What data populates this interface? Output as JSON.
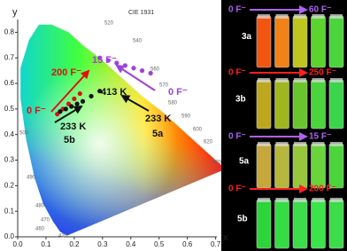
{
  "chart_data": {
    "type": "scatter",
    "title": "CIE 1931",
    "xlabel": "x",
    "ylabel": "y",
    "xlim": [
      0,
      0.72
    ],
    "ylim": [
      0,
      0.85
    ],
    "xticks": [
      {
        "value": 0,
        "label": "0.0"
      },
      {
        "value": 0.1,
        "label": "0.1"
      },
      {
        "value": 0.2,
        "label": "0.2"
      },
      {
        "value": 0.3,
        "label": "0.3"
      },
      {
        "value": 0.4,
        "label": "0.4"
      },
      {
        "value": 0.5,
        "label": "0.5"
      },
      {
        "value": 0.6,
        "label": "0.6"
      },
      {
        "value": 0.7,
        "label": "0.7"
      }
    ],
    "yticks": [
      {
        "value": 0,
        "label": "0.0"
      },
      {
        "value": 0.1,
        "label": "0.1"
      },
      {
        "value": 0.2,
        "label": "0.2"
      },
      {
        "value": 0.3,
        "label": "0.3"
      },
      {
        "value": 0.4,
        "label": "0.4"
      },
      {
        "value": 0.5,
        "label": "0.5"
      },
      {
        "value": 0.6,
        "label": "0.6"
      },
      {
        "value": 0.7,
        "label": "0.7"
      },
      {
        "value": 0.8,
        "label": "0.8"
      }
    ],
    "wavelengths": [
      "420",
      "460",
      "470",
      "480",
      "490",
      "500",
      "520",
      "540",
      "560",
      "570",
      "580",
      "590",
      "600",
      "620",
      "680"
    ],
    "series": [
      {
        "color": "#e01010",
        "x": [
          0.14,
          0.16,
          0.18,
          0.2,
          0.22
        ],
        "y": [
          0.48,
          0.5,
          0.52,
          0.54,
          0.56
        ]
      },
      {
        "color": "#111111",
        "x": [
          0.15,
          0.17,
          0.19,
          0.21,
          0.23,
          0.26,
          0.29
        ],
        "y": [
          0.49,
          0.5,
          0.51,
          0.52,
          0.53,
          0.55,
          0.57
        ]
      },
      {
        "color": "#a040e0",
        "x": [
          0.29,
          0.32,
          0.35,
          0.38,
          0.41,
          0.44,
          0.47
        ],
        "y": [
          0.7,
          0.69,
          0.68,
          0.67,
          0.66,
          0.65,
          0.64
        ]
      }
    ],
    "annotations": [
      "0 F⁻",
      "200 F⁻",
      "15 F⁻",
      "0 F⁻",
      "413 K",
      "233 K",
      "5b",
      "233 K",
      "5a"
    ]
  },
  "panels": [
    {
      "label": "3a",
      "start": "0 F⁻",
      "end": "60 F⁻",
      "arrow_color": "#b060f0",
      "vial_colors": [
        "#ff5a10",
        "#ff8a1a",
        "#c8d020",
        "#60e030",
        "#50e040"
      ]
    },
    {
      "label": "3b",
      "start": "0 F⁻",
      "end": "250 F⁻",
      "arrow_color": "#ff2020",
      "vial_colors": [
        "#c8b020",
        "#a8c020",
        "#70d030",
        "#50e040",
        "#40e050"
      ]
    },
    {
      "label": "5a",
      "start": "0 F⁻",
      "end": "15 F⁻",
      "arrow_color": "#b060f0",
      "vial_colors": [
        "#d0b040",
        "#c0c040",
        "#a0d040",
        "#70e040",
        "#50e040"
      ]
    },
    {
      "label": "5b",
      "start": "0 F⁻",
      "end": "200 F⁻",
      "arrow_color": "#ff2020",
      "vial_colors": [
        "#30e040",
        "#38e848",
        "#40e850",
        "#40f050",
        "#40e850"
      ]
    }
  ]
}
